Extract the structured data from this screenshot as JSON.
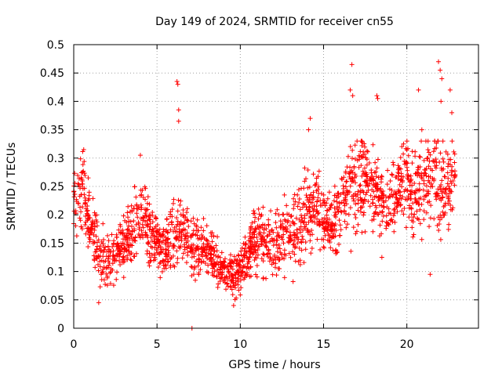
{
  "chart_data": {
    "type": "scatter",
    "title": "Day 149 of 2024, SRMTID for receiver cn55",
    "xlabel": "GPS time / hours",
    "ylabel": "SRMTID / TECUs",
    "xlim": [
      0,
      24.3
    ],
    "ylim": [
      0,
      0.5
    ],
    "xticks": [
      0,
      5,
      10,
      15,
      20
    ],
    "xtick_labels": [
      "0",
      "5",
      "10",
      "15",
      "20"
    ],
    "yticks": [
      0,
      0.05,
      0.1,
      0.15,
      0.2,
      0.25,
      0.3,
      0.35,
      0.4,
      0.45,
      0.5
    ],
    "ytick_labels": [
      "0",
      "0.05",
      "0.1",
      "0.15",
      "0.2",
      "0.25",
      "0.3",
      "0.35",
      "0.4",
      "0.45",
      "0.5"
    ],
    "grid": true,
    "marker": "+",
    "color": "#ff0000",
    "series": [
      {
        "name": "SRMTID",
        "trend": {
          "x": [
            0,
            0.5,
            1,
            1.5,
            2,
            2.5,
            3,
            3.5,
            4,
            4.5,
            5,
            5.5,
            6,
            6.5,
            7,
            7.5,
            8,
            8.5,
            9,
            9.5,
            10,
            10.5,
            11,
            11.5,
            12,
            12.5,
            13,
            13.5,
            14,
            14.5,
            15,
            15.5,
            16,
            16.5,
            17,
            17.5,
            18,
            18.5,
            19,
            19.5,
            20,
            20.5,
            21,
            21.5,
            22,
            22.5,
            22.9
          ],
          "y": [
            0.21,
            0.25,
            0.18,
            0.13,
            0.12,
            0.13,
            0.15,
            0.17,
            0.2,
            0.17,
            0.15,
            0.14,
            0.17,
            0.18,
            0.15,
            0.15,
            0.14,
            0.12,
            0.1,
            0.09,
            0.1,
            0.13,
            0.17,
            0.15,
            0.14,
            0.16,
            0.17,
            0.18,
            0.21,
            0.22,
            0.19,
            0.18,
            0.21,
            0.24,
            0.25,
            0.26,
            0.24,
            0.22,
            0.21,
            0.25,
            0.27,
            0.23,
            0.25,
            0.26,
            0.25,
            0.24,
            0.26
          ],
          "spread": [
            0.06,
            0.05,
            0.05,
            0.04,
            0.04,
            0.04,
            0.04,
            0.05,
            0.05,
            0.04,
            0.04,
            0.04,
            0.05,
            0.05,
            0.04,
            0.04,
            0.04,
            0.03,
            0.03,
            0.03,
            0.03,
            0.04,
            0.05,
            0.04,
            0.04,
            0.05,
            0.05,
            0.05,
            0.06,
            0.05,
            0.05,
            0.04,
            0.05,
            0.06,
            0.06,
            0.06,
            0.06,
            0.05,
            0.05,
            0.05,
            0.06,
            0.06,
            0.06,
            0.07,
            0.07,
            0.06,
            0.05
          ]
        },
        "points_per_hour": 90,
        "outliers": [
          {
            "x": 6.2,
            "y": 0.435
          },
          {
            "x": 6.25,
            "y": 0.43
          },
          {
            "x": 6.3,
            "y": 0.385
          },
          {
            "x": 6.3,
            "y": 0.365
          },
          {
            "x": 7.1,
            "y": 0.0
          },
          {
            "x": 16.7,
            "y": 0.465
          },
          {
            "x": 16.6,
            "y": 0.42
          },
          {
            "x": 16.75,
            "y": 0.41
          },
          {
            "x": 17.3,
            "y": 0.33
          },
          {
            "x": 18.2,
            "y": 0.41
          },
          {
            "x": 18.25,
            "y": 0.405
          },
          {
            "x": 18.5,
            "y": 0.125
          },
          {
            "x": 20.7,
            "y": 0.42
          },
          {
            "x": 20.9,
            "y": 0.35
          },
          {
            "x": 21.9,
            "y": 0.47
          },
          {
            "x": 22.0,
            "y": 0.455
          },
          {
            "x": 22.1,
            "y": 0.44
          },
          {
            "x": 22.05,
            "y": 0.4
          },
          {
            "x": 22.6,
            "y": 0.42
          },
          {
            "x": 22.7,
            "y": 0.38
          },
          {
            "x": 21.4,
            "y": 0.095
          },
          {
            "x": 9.6,
            "y": 0.04
          },
          {
            "x": 1.5,
            "y": 0.045
          },
          {
            "x": 14.2,
            "y": 0.37
          },
          {
            "x": 14.1,
            "y": 0.35
          },
          {
            "x": 0.6,
            "y": 0.315
          },
          {
            "x": 4.0,
            "y": 0.305
          },
          {
            "x": 19.8,
            "y": 0.325
          }
        ]
      }
    ]
  }
}
